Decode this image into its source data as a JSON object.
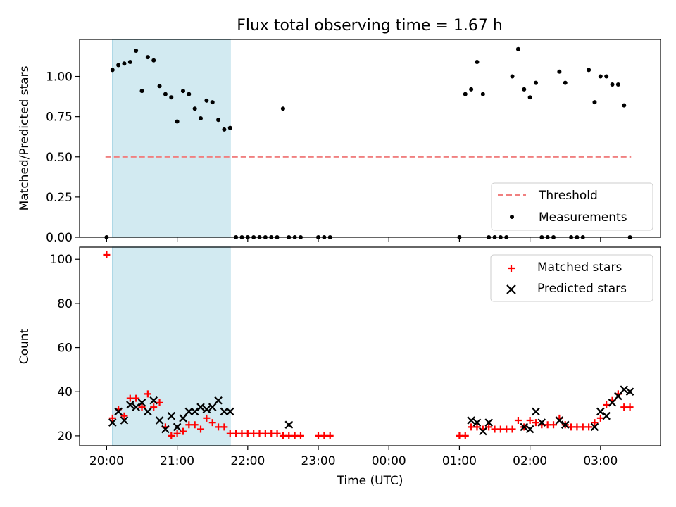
{
  "title": "Flux total observing time = 1.67 h",
  "colors": {
    "threshold": "#f08080",
    "measurement": "#000000",
    "matched": "#ff0000",
    "predicted": "#000000",
    "highlight": "#add8e6"
  },
  "chart_data": [
    {
      "type": "scatter",
      "ylabel": "Matched/Predicted stars",
      "ylim": [
        0,
        1.23
      ],
      "xlim": [
        "19:37",
        "03:51"
      ],
      "yticks": [
        "0.00",
        "0.25",
        "0.50",
        "0.75",
        "1.00"
      ],
      "highlight_span": [
        "20:05",
        "21:45"
      ],
      "legend": {
        "position": "lower-right",
        "entries": [
          "Threshold",
          "Measurements"
        ]
      },
      "threshold": {
        "name": "Threshold",
        "value": 0.5,
        "x": [
          "19:59",
          "03:26"
        ]
      },
      "series": [
        {
          "name": "Measurements",
          "x": [
            "20:00",
            "20:05",
            "20:10",
            "20:15",
            "20:20",
            "20:25",
            "20:30",
            "20:35",
            "20:40",
            "20:45",
            "20:50",
            "20:55",
            "21:00",
            "21:05",
            "21:10",
            "21:15",
            "21:20",
            "21:25",
            "21:30",
            "21:35",
            "21:40",
            "21:45",
            "21:50",
            "21:55",
            "22:00",
            "22:05",
            "22:10",
            "22:15",
            "22:20",
            "22:25",
            "22:30",
            "22:35",
            "22:40",
            "22:45",
            "23:00",
            "23:05",
            "23:10",
            "01:00",
            "01:05",
            "01:10",
            "01:15",
            "01:20",
            "01:25",
            "01:30",
            "01:35",
            "01:40",
            "01:45",
            "01:50",
            "01:55",
            "02:00",
            "02:05",
            "02:10",
            "02:15",
            "02:20",
            "02:25",
            "02:30",
            "02:35",
            "02:40",
            "02:45",
            "02:50",
            "02:55",
            "03:00",
            "03:05",
            "03:10",
            "03:15",
            "03:20",
            "03:25"
          ],
          "y": [
            0,
            1.04,
            1.07,
            1.08,
            1.09,
            1.16,
            0.91,
            1.12,
            1.1,
            0.94,
            0.89,
            0.87,
            0.72,
            0.91,
            0.89,
            0.8,
            0.74,
            0.85,
            0.84,
            0.73,
            0.67,
            0.68,
            0,
            0,
            0,
            0,
            0,
            0,
            0,
            0,
            0.8,
            0,
            0,
            0,
            0,
            0,
            0,
            0,
            0.89,
            0.92,
            1.09,
            0.89,
            0,
            0,
            0,
            0,
            1.0,
            1.17,
            0.92,
            0.87,
            0.96,
            0,
            0,
            0,
            1.03,
            0.96,
            0,
            0,
            0,
            1.04,
            0.84,
            1.0,
            1.0,
            0.95,
            0.95,
            0.82,
            0
          ]
        }
      ]
    },
    {
      "type": "scatter",
      "xlabel": "Time (UTC)",
      "ylabel": "Count",
      "ylim": [
        15.5,
        105.5
      ],
      "xlim": [
        "19:37",
        "03:51"
      ],
      "xticks": [
        "20:00",
        "21:00",
        "22:00",
        "23:00",
        "00:00",
        "01:00",
        "02:00",
        "03:00"
      ],
      "yticks": [
        "20",
        "40",
        "60",
        "80",
        "100"
      ],
      "highlight_span": [
        "20:05",
        "21:45"
      ],
      "legend": {
        "position": "top-right",
        "entries": [
          "Matched stars",
          "Predicted stars"
        ]
      },
      "series": [
        {
          "name": "Matched stars",
          "x": [
            "20:00",
            "20:05",
            "20:10",
            "20:15",
            "20:20",
            "20:25",
            "20:30",
            "20:35",
            "20:40",
            "20:45",
            "20:50",
            "20:55",
            "21:00",
            "21:05",
            "21:10",
            "21:15",
            "21:20",
            "21:25",
            "21:30",
            "21:35",
            "21:40",
            "21:45",
            "21:50",
            "21:55",
            "22:00",
            "22:05",
            "22:10",
            "22:15",
            "22:20",
            "22:25",
            "22:30",
            "22:35",
            "22:40",
            "22:45",
            "23:00",
            "23:05",
            "23:10",
            "01:00",
            "01:05",
            "01:10",
            "01:15",
            "01:20",
            "01:25",
            "01:30",
            "01:35",
            "01:40",
            "01:45",
            "01:50",
            "01:55",
            "02:00",
            "02:05",
            "02:10",
            "02:15",
            "02:20",
            "02:25",
            "02:30",
            "02:35",
            "02:40",
            "02:45",
            "02:50",
            "02:55",
            "03:00",
            "03:05",
            "03:10",
            "03:15",
            "03:20",
            "03:25"
          ],
          "y": [
            102,
            28,
            32,
            29,
            37,
            37,
            33,
            39,
            33,
            35,
            24,
            20,
            21,
            22,
            25,
            25,
            23,
            28,
            26,
            24,
            24,
            21,
            21,
            21,
            21,
            21,
            21,
            21,
            21,
            21,
            20,
            20,
            20,
            20,
            20,
            20,
            20,
            20,
            20,
            24,
            24,
            23,
            24,
            23,
            23,
            23,
            23,
            27,
            24,
            27,
            26,
            25,
            25,
            25,
            28,
            25,
            24,
            24,
            24,
            24,
            26,
            28,
            34,
            36,
            39,
            33,
            33
          ]
        },
        {
          "name": "Predicted stars",
          "x": [
            "20:05",
            "20:10",
            "20:15",
            "20:20",
            "20:25",
            "20:30",
            "20:35",
            "20:40",
            "20:45",
            "20:50",
            "20:55",
            "21:00",
            "21:05",
            "21:10",
            "21:15",
            "21:20",
            "21:25",
            "21:30",
            "21:35",
            "21:40",
            "21:45",
            "22:35",
            "01:10",
            "01:15",
            "01:20",
            "01:25",
            "01:55",
            "02:00",
            "02:05",
            "02:10",
            "02:25",
            "02:30",
            "02:55",
            "03:00",
            "03:05",
            "03:10",
            "03:15",
            "03:20",
            "03:25"
          ],
          "y": [
            26,
            31,
            27,
            34,
            33,
            35,
            31,
            36,
            27,
            23,
            29,
            24,
            28,
            31,
            31,
            33,
            32,
            33,
            36,
            31,
            31,
            25,
            27,
            26,
            22,
            26,
            24,
            23,
            31,
            26,
            27,
            25,
            24,
            31,
            29,
            35,
            38,
            41,
            40
          ]
        }
      ]
    }
  ]
}
